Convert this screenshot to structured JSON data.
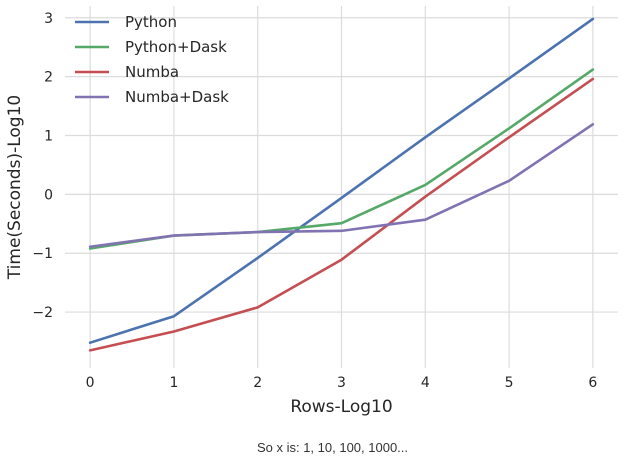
{
  "chart_data": {
    "type": "line",
    "title": "",
    "xlabel": "Rows-Log10",
    "ylabel": "Time(Seconds)-Log10",
    "xlim": [
      -0.3,
      6.3
    ],
    "ylim": [
      -2.95,
      3.2
    ],
    "xticks": [
      0,
      1,
      2,
      3,
      4,
      5,
      6
    ],
    "yticks": [
      -2,
      -1,
      0,
      1,
      2,
      3
    ],
    "ytick_labels": [
      "−2",
      "−1",
      "0",
      "1",
      "2",
      "3"
    ],
    "grid": true,
    "legend_position": "top-left",
    "x": [
      0,
      1,
      2,
      3,
      4,
      5,
      6
    ],
    "series": [
      {
        "name": "Python",
        "color": "#4c72b0",
        "values": [
          -2.52,
          -2.07,
          -1.08,
          -0.06,
          0.97,
          1.97,
          2.98
        ]
      },
      {
        "name": "Python+Dask",
        "color": "#55a868",
        "values": [
          -0.92,
          -0.7,
          -0.64,
          -0.49,
          0.16,
          1.12,
          2.12
        ]
      },
      {
        "name": "Numba",
        "color": "#c44e52",
        "values": [
          -2.65,
          -2.33,
          -1.92,
          -1.11,
          -0.04,
          0.97,
          1.96
        ]
      },
      {
        "name": "Numba+Dask",
        "color": "#8172b2",
        "values": [
          -0.89,
          -0.7,
          -0.64,
          -0.62,
          -0.43,
          0.23,
          1.19
        ]
      }
    ]
  },
  "caption": "So x is: 1, 10, 100, 1000..."
}
